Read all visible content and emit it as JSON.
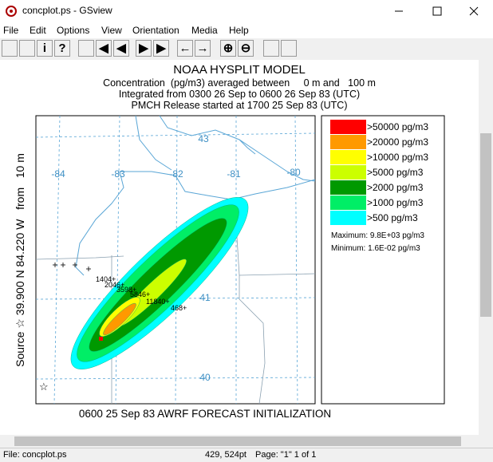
{
  "window": {
    "title": "concplot.ps - GSview"
  },
  "menu": [
    "File",
    "Edit",
    "Options",
    "View",
    "Orientation",
    "Media",
    "Help"
  ],
  "toolbar": [
    "i",
    "?"
  ],
  "plot": {
    "title": "NOAA HYSPLIT MODEL",
    "lines": [
      "Concentration  (pg/m3) averaged between     0 m and   100 m",
      "Integrated from 0300 26 Sep to 0600 26 Sep 83 (UTC)",
      "PMCH Release started at 1700 25 Sep 83 (UTC)"
    ],
    "longitudes": [
      "-84",
      "-83",
      "-82",
      "-81",
      "-80"
    ],
    "latitudes": [
      "43",
      "41",
      "40"
    ],
    "source_label": "Source ☆ 39.900 N 84.220 W   from   10 m",
    "point_labels": [
      "1404+",
      "2046+",
      "3598+",
      "5846+",
      "11840+",
      "468+"
    ],
    "footer": "0600 25 Sep 83 AWRF FORECAST INITIALIZATION"
  },
  "legend": {
    "items": [
      {
        "label": ">50000 pg/m3",
        "color": "#ff0000"
      },
      {
        "label": ">20000 pg/m3",
        "color": "#ff9900"
      },
      {
        "label": ">10000 pg/m3",
        "color": "#ffff00"
      },
      {
        "label": ">5000 pg/m3",
        "color": "#ccff00"
      },
      {
        "label": ">2000 pg/m3",
        "color": "#009900"
      },
      {
        "label": ">1000 pg/m3",
        "color": "#00ee66"
      },
      {
        "label": ">500 pg/m3",
        "color": "#00ffff"
      }
    ],
    "maximum": "Maximum: 9.8E+03 pg/m3",
    "minimum": "Minimum: 1.6E-02 pg/m3"
  },
  "status": {
    "file": "File: concplot.ps",
    "position": "429, 524pt",
    "page": "Page: \"1\" 1 of 1"
  }
}
